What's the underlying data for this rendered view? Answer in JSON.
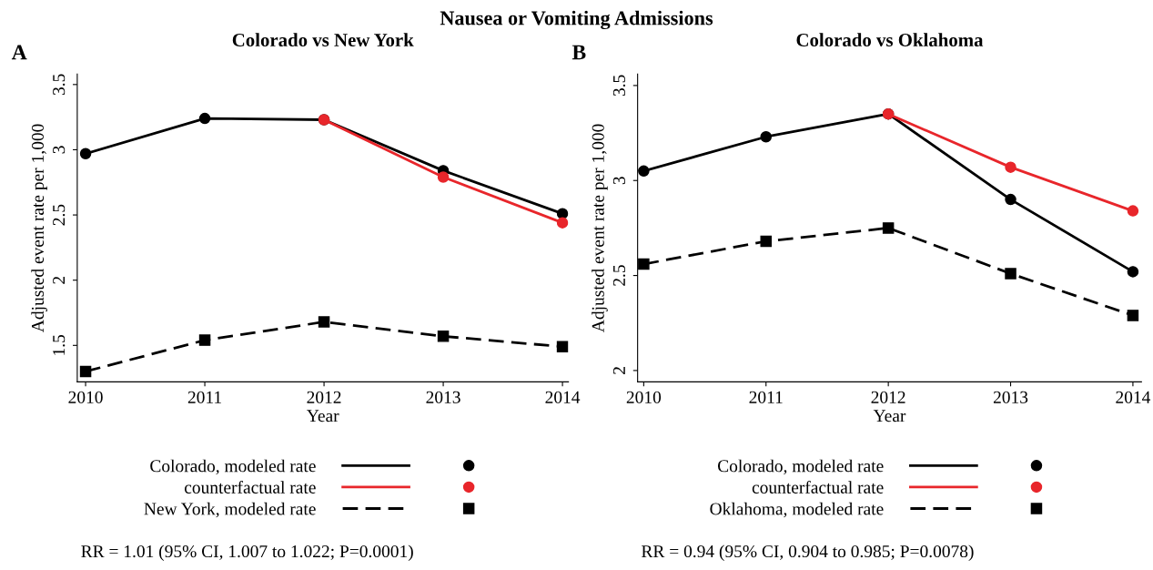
{
  "chart_data": [
    {
      "type": "line",
      "title": "Colorado vs New York",
      "xlabel": "Year",
      "ylabel": "Adjusted event rate per 1,000",
      "x": [
        2010,
        2011,
        2012,
        2013,
        2014
      ],
      "series": [
        {
          "name": "Colorado, modeled rate",
          "color": "#000000",
          "values": [
            2.97,
            3.24,
            3.23,
            2.84,
            2.51
          ],
          "line_style": "solid",
          "marker": "circle"
        },
        {
          "name": "counterfactual rate",
          "color": "#e8262b",
          "values": [
            null,
            null,
            3.23,
            2.79,
            2.44
          ],
          "line_style": "solid",
          "marker": "circle"
        },
        {
          "name": "New York, modeled rate",
          "color": "#000000",
          "values": [
            1.3,
            1.54,
            1.68,
            1.57,
            1.49
          ],
          "line_style": "dashed",
          "marker": "square"
        }
      ],
      "xlim": [
        2009.93,
        2014.05
      ],
      "xticks": [
        2010,
        2011,
        2012,
        2013,
        2014
      ],
      "ylim": [
        1.22,
        3.58
      ],
      "yticks": [
        1.5,
        2,
        2.5,
        3,
        3.5
      ],
      "grid": false,
      "legend": "bottom",
      "annotations": [
        "A",
        "RR = 1.01 (95% CI, 1.007 to 1.022; P=0.0001)",
        "Nausea or Vomiting Admissions"
      ]
    },
    {
      "type": "line",
      "title": "Colorado vs Oklahoma",
      "xlabel": "Year",
      "ylabel": "Adjusted event rate per 1,000",
      "x": [
        2010,
        2011,
        2012,
        2013,
        2014
      ],
      "series": [
        {
          "name": "Colorado, modeled rate",
          "color": "#000000",
          "values": [
            3.05,
            3.23,
            3.35,
            2.9,
            2.52
          ],
          "line_style": "solid",
          "marker": "circle"
        },
        {
          "name": "counterfactual rate",
          "color": "#e8262b",
          "values": [
            null,
            null,
            3.35,
            3.07,
            2.84
          ],
          "line_style": "solid",
          "marker": "circle"
        },
        {
          "name": "Oklahoma, modeled rate",
          "color": "#000000",
          "values": [
            2.56,
            2.68,
            2.75,
            2.51,
            2.29
          ],
          "line_style": "dashed",
          "marker": "square"
        }
      ],
      "xlim": [
        2009.95,
        2014.07
      ],
      "xticks": [
        2010,
        2011,
        2012,
        2013,
        2014
      ],
      "ylim": [
        1.94,
        3.56
      ],
      "yticks": [
        2,
        2.5,
        3,
        3.5
      ],
      "grid": false,
      "legend": "bottom",
      "annotations": [
        "B",
        "RR = 0.94 (95% CI, 0.904 to 0.985; P=0.0078)"
      ]
    }
  ]
}
